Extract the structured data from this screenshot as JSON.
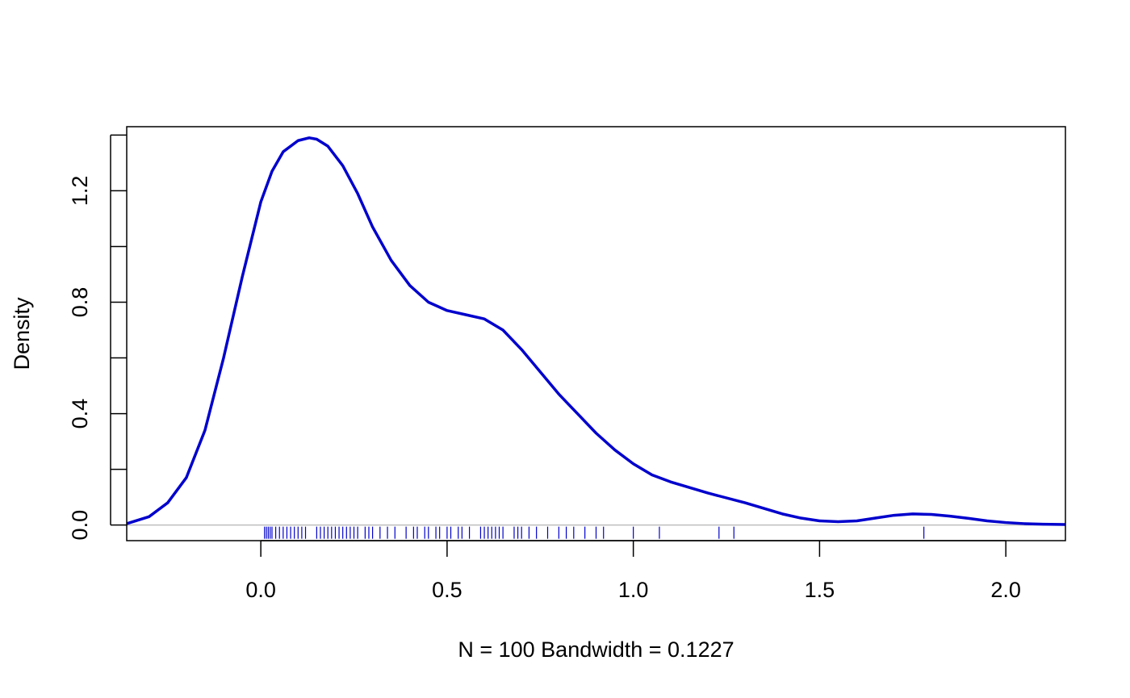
{
  "chart_data": {
    "type": "line",
    "title": "",
    "xlabel": "N = 100   Bandwidth = 0.1227",
    "ylabel": "Density",
    "xlim": [
      -0.36,
      2.16
    ],
    "ylim": [
      -0.056,
      1.43
    ],
    "x_ticks": [
      0.0,
      0.5,
      1.0,
      1.5,
      2.0
    ],
    "x_tick_labels": [
      "0.0",
      "0.5",
      "1.0",
      "1.5",
      "2.0"
    ],
    "y_ticks": [
      0.0,
      0.2,
      0.4,
      0.6,
      0.8,
      1.0,
      1.2,
      1.4
    ],
    "y_tick_labels": [
      "0.0",
      "",
      "0.4",
      "",
      "0.8",
      "",
      "1.2",
      ""
    ],
    "grid": false,
    "colors": {
      "curve": "#0000CD",
      "rug": "#0000CD",
      "baseline": "#BEBEBE",
      "axes": "#000000"
    },
    "series": [
      {
        "x": [
          -0.36,
          -0.3,
          -0.25,
          -0.2,
          -0.15,
          -0.1,
          -0.05,
          0.0,
          0.03,
          0.06,
          0.1,
          0.13,
          0.15,
          0.18,
          0.22,
          0.26,
          0.3,
          0.35,
          0.4,
          0.45,
          0.5,
          0.55,
          0.6,
          0.65,
          0.7,
          0.75,
          0.8,
          0.85,
          0.9,
          0.95,
          1.0,
          1.05,
          1.1,
          1.2,
          1.3,
          1.4,
          1.45,
          1.5,
          1.55,
          1.6,
          1.65,
          1.7,
          1.75,
          1.8,
          1.85,
          1.9,
          1.95,
          2.0,
          2.05,
          2.1,
          2.16
        ],
        "y": [
          0.005,
          0.03,
          0.08,
          0.17,
          0.34,
          0.6,
          0.89,
          1.16,
          1.27,
          1.34,
          1.38,
          1.39,
          1.385,
          1.36,
          1.29,
          1.19,
          1.07,
          0.95,
          0.86,
          0.8,
          0.77,
          0.755,
          0.74,
          0.7,
          0.63,
          0.55,
          0.47,
          0.4,
          0.33,
          0.27,
          0.22,
          0.18,
          0.155,
          0.115,
          0.08,
          0.04,
          0.025,
          0.015,
          0.012,
          0.015,
          0.025,
          0.035,
          0.04,
          0.038,
          0.032,
          0.024,
          0.015,
          0.009,
          0.005,
          0.003,
          0.002
        ]
      }
    ],
    "rug": [
      0.01,
      0.015,
      0.02,
      0.025,
      0.03,
      0.04,
      0.05,
      0.06,
      0.07,
      0.08,
      0.09,
      0.1,
      0.11,
      0.12,
      0.15,
      0.16,
      0.17,
      0.18,
      0.19,
      0.2,
      0.21,
      0.22,
      0.23,
      0.24,
      0.25,
      0.26,
      0.28,
      0.29,
      0.3,
      0.32,
      0.34,
      0.36,
      0.39,
      0.41,
      0.42,
      0.44,
      0.45,
      0.47,
      0.48,
      0.5,
      0.51,
      0.53,
      0.54,
      0.56,
      0.59,
      0.6,
      0.61,
      0.62,
      0.63,
      0.64,
      0.65,
      0.68,
      0.69,
      0.7,
      0.72,
      0.74,
      0.77,
      0.8,
      0.82,
      0.84,
      0.87,
      0.9,
      0.92,
      1.0,
      1.07,
      1.23,
      1.27,
      1.78
    ]
  }
}
